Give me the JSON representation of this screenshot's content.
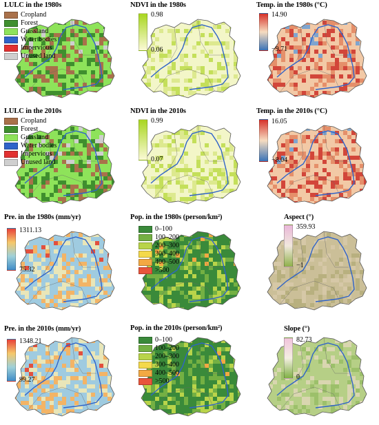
{
  "panels": [
    {
      "id": "lulc1980",
      "title": "LULC in the 1980s",
      "kind": "categorical",
      "items": [
        {
          "label": "Cropland",
          "color": "#a9714a"
        },
        {
          "label": "Forest",
          "color": "#3f8f2e"
        },
        {
          "label": "Grassland",
          "color": "#8ee35a"
        },
        {
          "label": "Water bodies",
          "color": "#2f63c9"
        },
        {
          "label": "Impervious",
          "color": "#e23131"
        },
        {
          "label": "Unused land",
          "color": "#cfcfcf"
        }
      ],
      "map_colors": [
        "#8ee35a",
        "#3f8f2e",
        "#a9714a",
        "#cfcfcf"
      ]
    },
    {
      "id": "ndvi1980",
      "title": "NDVI in the 1980s",
      "kind": "ramp",
      "max": "0.98",
      "min": "0.06",
      "ramp_colors": [
        "#a8d61f",
        "#fbfad6"
      ],
      "map_colors": [
        "#f3f6c8",
        "#dde98f",
        "#c4df5a"
      ]
    },
    {
      "id": "temp1980",
      "title": "Temp. in the 1980s (°C)",
      "kind": "ramp",
      "max": "14.90",
      "min": "−9.71",
      "ramp_colors": [
        "#d7322a",
        "#f6dcc0",
        "#3a73b8"
      ],
      "map_colors": [
        "#f2c9a6",
        "#e58f6a",
        "#d2463a",
        "#7fa5cf"
      ]
    },
    {
      "id": "lulc2010",
      "title": "LULC in the 2010s",
      "kind": "categorical",
      "items": [
        {
          "label": "Cropland",
          "color": "#a9714a"
        },
        {
          "label": "Forest",
          "color": "#3f8f2e"
        },
        {
          "label": "Grassland",
          "color": "#8ee35a"
        },
        {
          "label": "Water bodies",
          "color": "#2f63c9"
        },
        {
          "label": "Impervious",
          "color": "#e23131"
        },
        {
          "label": "Unused land",
          "color": "#cfcfcf"
        }
      ],
      "map_colors": [
        "#8ee35a",
        "#3f8f2e",
        "#a9714a",
        "#cfcfcf"
      ]
    },
    {
      "id": "ndvi2010",
      "title": "NDVI in the 2010s",
      "kind": "ramp",
      "max": "0.99",
      "min": "0.07",
      "ramp_colors": [
        "#a8d61f",
        "#fbfad6"
      ],
      "map_colors": [
        "#f3f6c8",
        "#dde98f",
        "#c4df5a"
      ]
    },
    {
      "id": "temp2010",
      "title": "Temp. in the 2010s (°C)",
      "kind": "ramp",
      "max": "16.05",
      "min": "−8.04",
      "ramp_colors": [
        "#d7322a",
        "#f6dcc0",
        "#3a73b8"
      ],
      "map_colors": [
        "#f2c9a6",
        "#e58f6a",
        "#d2463a",
        "#7fa5cf"
      ]
    },
    {
      "id": "pre1980",
      "title": "Pre. in the 1980s (mm/yr)",
      "kind": "ramp",
      "max": "1311.13",
      "min": "75.32",
      "ramp_colors": [
        "#e8413a",
        "#f6c86a",
        "#9fd0d8",
        "#3f8cc8"
      ],
      "map_colors": [
        "#9fcbe0",
        "#e9e6b8",
        "#f3b466",
        "#e2503e"
      ]
    },
    {
      "id": "pop1980",
      "title": "Pop. in the 1980s (person/km²)",
      "kind": "categorical",
      "items": [
        {
          "label": "0–100",
          "color": "#3a8a3a"
        },
        {
          "label": "100–200",
          "color": "#74b043"
        },
        {
          "label": "200–300",
          "color": "#b9d44a"
        },
        {
          "label": "300–400",
          "color": "#f4d94a"
        },
        {
          "label": "400–500",
          "color": "#f3a943"
        },
        {
          "label": ">500",
          "color": "#e8553c"
        }
      ],
      "map_colors": [
        "#3a8a3a",
        "#74b043",
        "#b9d44a",
        "#f3a943"
      ]
    },
    {
      "id": "aspect",
      "title": "Aspect (°)",
      "kind": "ramp",
      "max": "359.93",
      "min": "−1",
      "ramp_colors": [
        "#e9b7d9",
        "#f1e8dd",
        "#8fb04a"
      ],
      "map_colors": [
        "#cbbf98",
        "#d6c8a7",
        "#b8b07f"
      ]
    },
    {
      "id": "pre2010",
      "title": "Pre. in the 2010s (mm/yr)",
      "kind": "ramp",
      "max": "1348.21",
      "min": "99.27",
      "ramp_colors": [
        "#e8413a",
        "#f6c86a",
        "#9fd0d8",
        "#3f8cc8"
      ],
      "map_colors": [
        "#9fcbe0",
        "#e9e6b8",
        "#f3b466",
        "#e2503e"
      ]
    },
    {
      "id": "pop2010",
      "title": "Pop. in the 2010s (person/km²)",
      "kind": "categorical",
      "items": [
        {
          "label": "0–100",
          "color": "#3a8a3a"
        },
        {
          "label": "100–200",
          "color": "#74b043"
        },
        {
          "label": "200–300",
          "color": "#b9d44a"
        },
        {
          "label": "300–400",
          "color": "#f4d94a"
        },
        {
          "label": "400–500",
          "color": "#f3a943"
        },
        {
          "label": ">500",
          "color": "#e8553c"
        }
      ],
      "map_colors": [
        "#3a8a3a",
        "#74b043",
        "#b9d44a",
        "#f3a943"
      ]
    },
    {
      "id": "slope",
      "title": "Slope (°)",
      "kind": "ramp",
      "max": "82.73",
      "min": "0",
      "ramp_colors": [
        "#f1c4dc",
        "#f4efe2",
        "#7fb044"
      ],
      "map_colors": [
        "#b6cf86",
        "#d9d6b0",
        "#9cc06a"
      ]
    }
  ]
}
